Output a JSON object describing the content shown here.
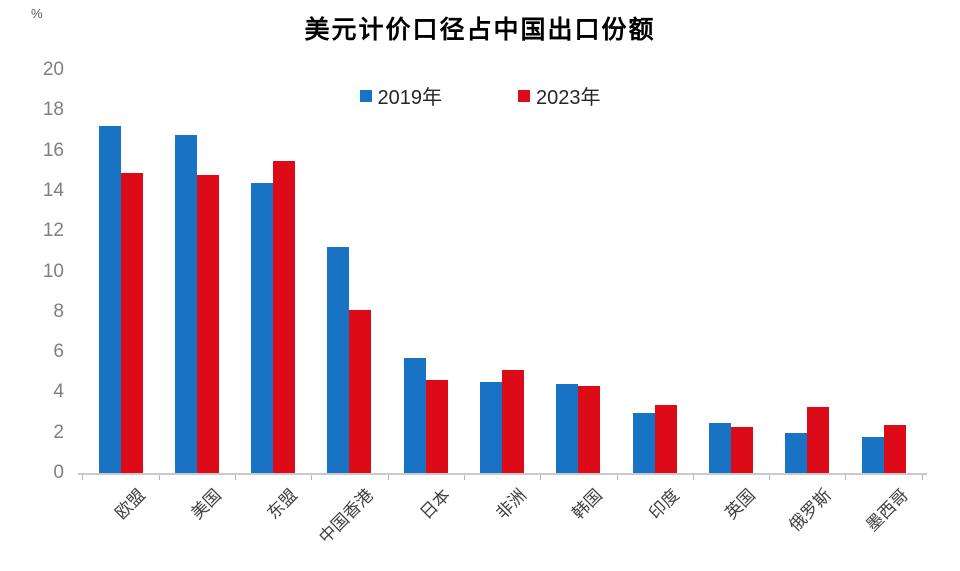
{
  "chart_data": {
    "type": "bar",
    "title": "美元计价口径占中国出口份额",
    "unit_label": "%",
    "categories": [
      "欧盟",
      "美国",
      "东盟",
      "中国香港",
      "日本",
      "非洲",
      "韩国",
      "印度",
      "英国",
      "俄罗斯",
      "墨西哥"
    ],
    "series": [
      {
        "name": "2019年",
        "color": "#1873c4",
        "values": [
          17.2,
          16.8,
          14.4,
          11.2,
          5.7,
          4.5,
          4.4,
          3.0,
          2.5,
          2.0,
          1.8
        ]
      },
      {
        "name": "2023年",
        "color": "#dd0a17",
        "values": [
          14.9,
          14.8,
          15.5,
          8.1,
          4.6,
          5.1,
          4.3,
          3.4,
          2.3,
          3.3,
          2.4
        ]
      }
    ],
    "ylim": [
      0,
      20
    ],
    "ytick_step": 2,
    "yticks": [
      0,
      2,
      4,
      6,
      8,
      10,
      12,
      14,
      16,
      18,
      20
    ],
    "grid": false,
    "legend_position": "top-center",
    "axis_color": "#c9c9c9",
    "ytick_label_color": "#7f7f7f",
    "xtick_label_color": "#404040"
  }
}
